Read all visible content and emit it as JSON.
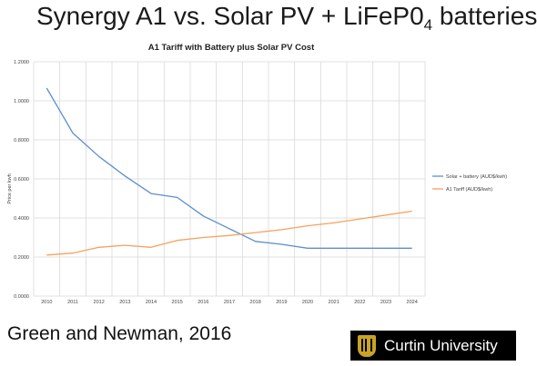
{
  "slide": {
    "title_main": "Synergy A1 vs. Solar PV + LiFeP0",
    "title_subscript": "4",
    "title_tail": " batteries",
    "credit": "Green and Newman, 2016",
    "logo_text": "Curtin University"
  },
  "colors": {
    "solar_battery": "#5b8fd0",
    "a1_tariff": "#f5a25d",
    "logo_background": "#000000",
    "logo_crest": "#c9a227"
  },
  "chart_data": {
    "type": "line",
    "title": "A1 Tariff with Battery plus Solar PV Cost",
    "xlabel": "",
    "ylabel": "Price per kwh",
    "categories": [
      "2010",
      "2011",
      "2012",
      "2013",
      "2014",
      "2015",
      "2016",
      "2017",
      "2018",
      "2019",
      "2020",
      "2021",
      "2022",
      "2023",
      "2024"
    ],
    "y_ticks": [
      "0.0000",
      "0.2000",
      "0.4000",
      "0.6000",
      "0.8000",
      "1.0000",
      "1.2000"
    ],
    "ylim": [
      0,
      1.2
    ],
    "grid": true,
    "legend_position": "right",
    "series": [
      {
        "name": "Solar + battery (AUD$/kwh)",
        "color": "#5b8fd0",
        "values": [
          1.065,
          0.835,
          0.715,
          0.615,
          0.525,
          0.505,
          0.41,
          0.345,
          0.28,
          0.265,
          0.245,
          0.245,
          0.245,
          0.245,
          0.245
        ]
      },
      {
        "name": "A1 Tariff (AUD$/kwh)",
        "color": "#f5a25d",
        "values": [
          0.21,
          0.22,
          0.25,
          0.26,
          0.25,
          0.285,
          0.3,
          0.31,
          0.325,
          0.34,
          0.36,
          0.375,
          0.395,
          0.415,
          0.435
        ]
      }
    ]
  }
}
